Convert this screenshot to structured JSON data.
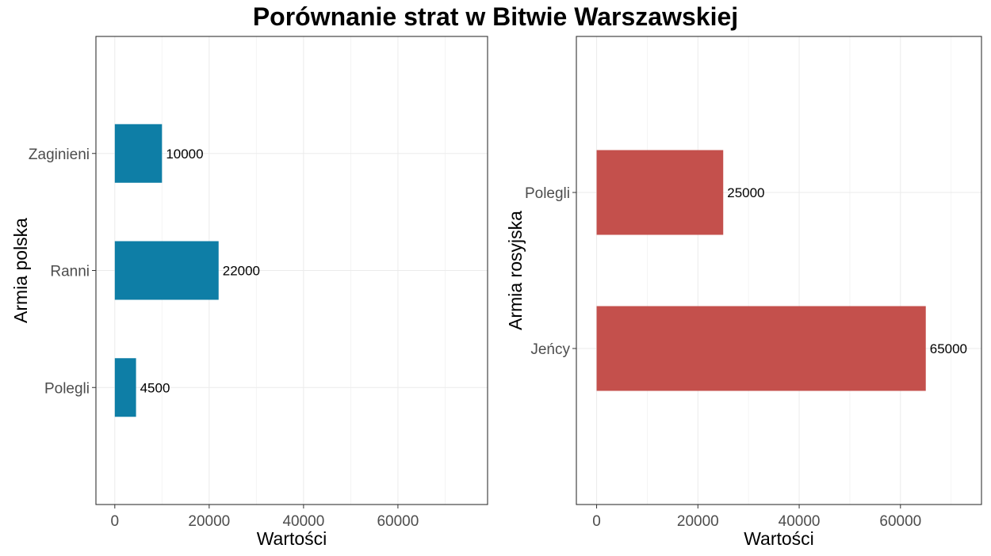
{
  "title": "Porównanie strat w Bitwie Warszawskiej",
  "chart_data": [
    {
      "type": "bar",
      "orientation": "horizontal",
      "categories": [
        "Polegli",
        "Ranni",
        "Zaginieni"
      ],
      "values": [
        4500,
        22000,
        10000
      ],
      "data_labels": [
        "4500",
        "22000",
        "10000"
      ],
      "xlabel": "Wartości",
      "ylabel": "Armia polska",
      "xlim": [
        -4000,
        79000
      ],
      "x_ticks": [
        0,
        20000,
        40000,
        60000
      ],
      "x_tick_labels": [
        "0",
        "20000",
        "40000",
        "60000"
      ],
      "bar_color": "#0e7ea6",
      "grid": true
    },
    {
      "type": "bar",
      "orientation": "horizontal",
      "categories": [
        "Jeńcy",
        "Polegli"
      ],
      "values": [
        65000,
        25000
      ],
      "data_labels": [
        "65000",
        "25000"
      ],
      "xlabel": "Wartości",
      "ylabel": "Armia rosyjska",
      "xlim": [
        -4000,
        76000
      ],
      "x_ticks": [
        0,
        20000,
        40000,
        60000
      ],
      "x_tick_labels": [
        "0",
        "20000",
        "40000",
        "60000"
      ],
      "bar_color": "#c4504c",
      "grid": true
    }
  ]
}
